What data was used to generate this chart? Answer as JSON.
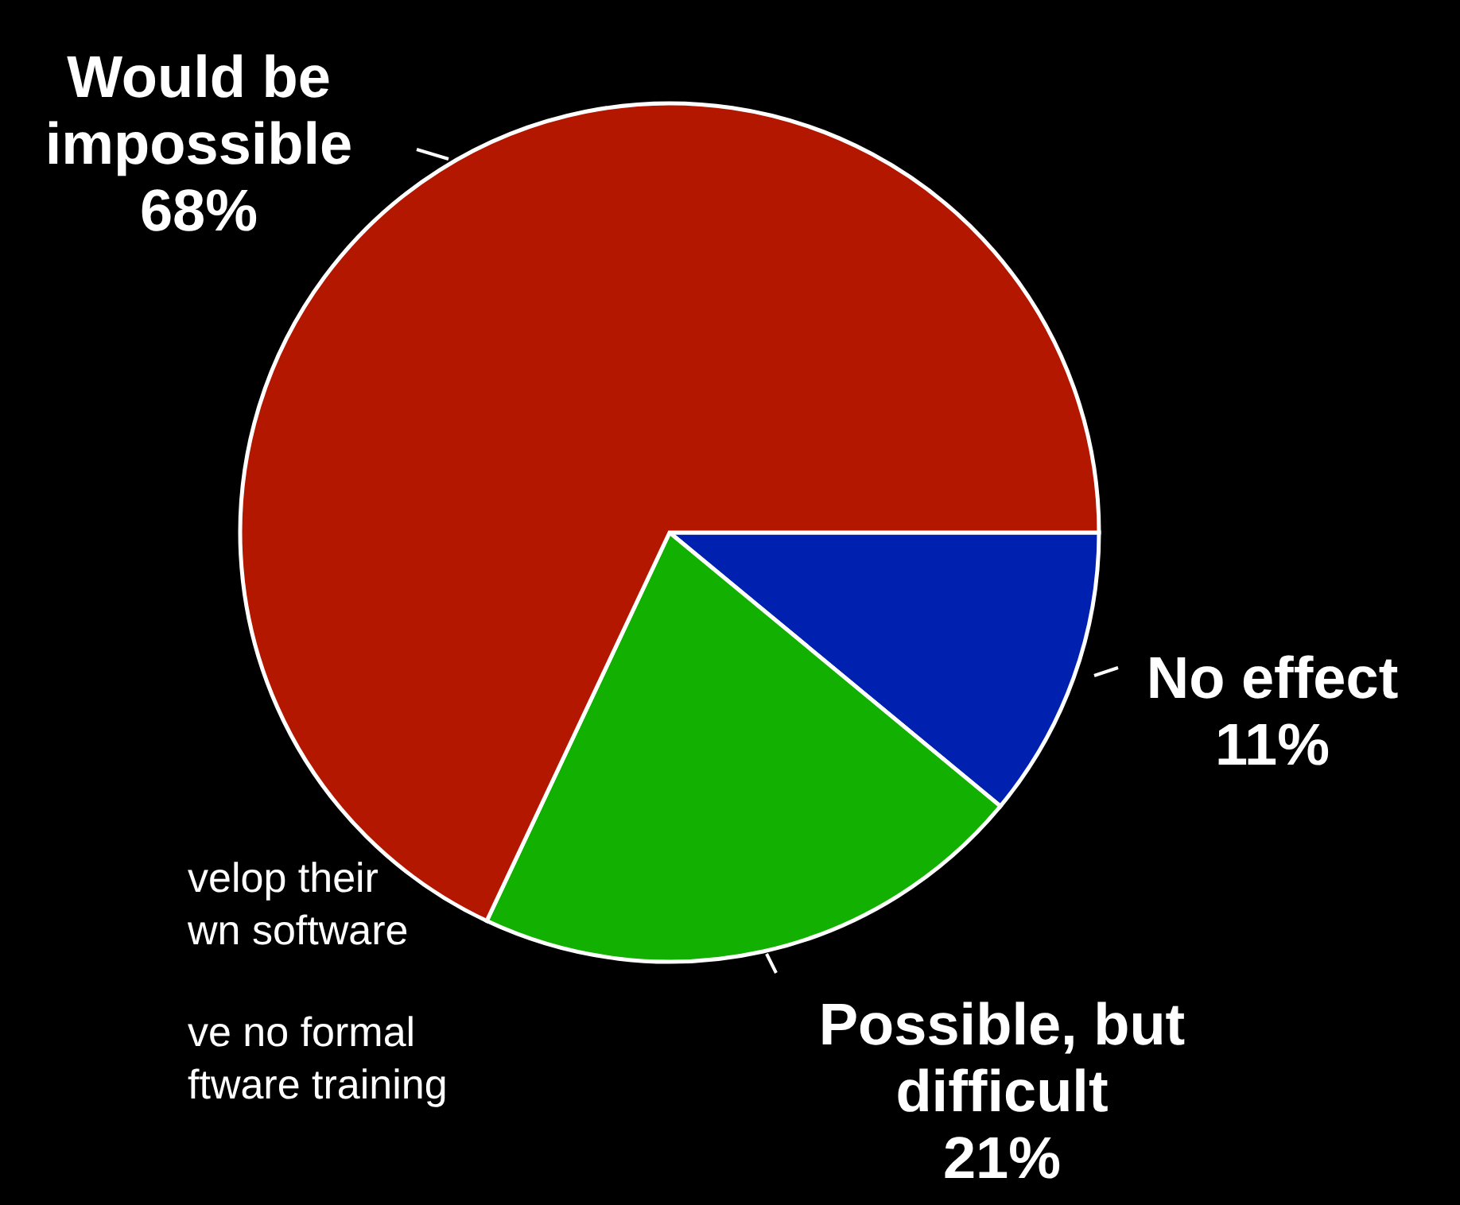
{
  "chart_data": {
    "type": "pie",
    "categories": [
      "No effect",
      "Possible, but\ndifficult",
      "Would be\nimpossible"
    ],
    "values": [
      11,
      21,
      68
    ],
    "colors": [
      "#0021b0",
      "#12b000",
      "#b31700"
    ],
    "value_labels": [
      "11%",
      "21%",
      "68%"
    ],
    "annotations": [
      "velop their\nwn software",
      "ve no formal\nftware training"
    ]
  }
}
